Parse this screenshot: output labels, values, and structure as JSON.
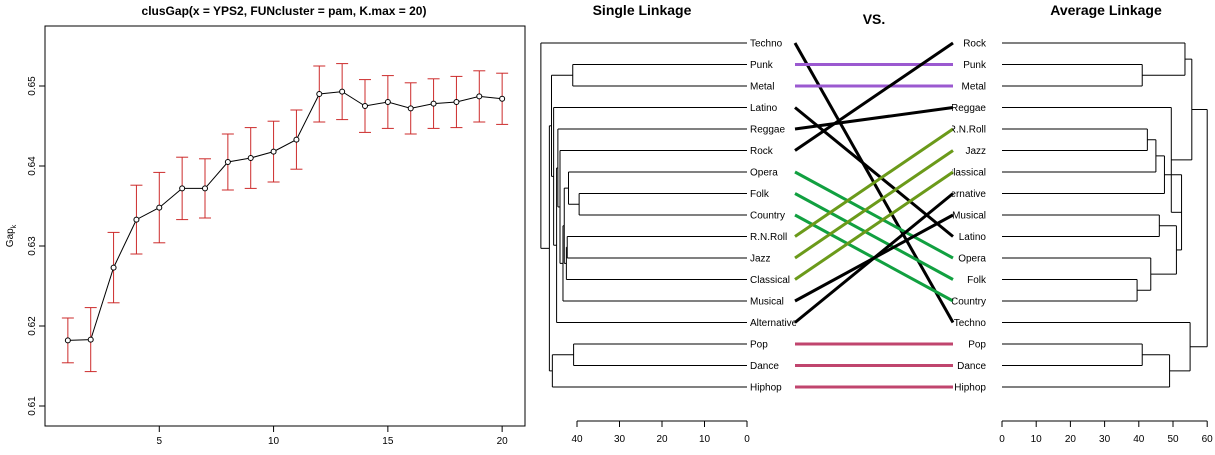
{
  "chart_data": [
    {
      "type": "line",
      "title": "clusGap(x = YPS2, FUNcluster = pam, K.max = 20)",
      "xlabel": "",
      "ylabel": "Gap",
      "ylabel_subscript": "k",
      "xlim": [
        0,
        21
      ],
      "ylim": [
        0.6075,
        0.6575
      ],
      "xticks": [
        "5",
        "10",
        "15",
        "20"
      ],
      "yticks": [
        "0.61",
        "0.62",
        "0.63",
        "0.64",
        "0.65"
      ],
      "errorbar_color": "#cc2b2b",
      "x": [
        1,
        2,
        3,
        4,
        5,
        6,
        7,
        8,
        9,
        10,
        11,
        12,
        13,
        14,
        15,
        16,
        17,
        18,
        19,
        20
      ],
      "values": [
        0.6182,
        0.6183,
        0.6273,
        0.6333,
        0.6348,
        0.6372,
        0.6372,
        0.6405,
        0.641,
        0.6418,
        0.6433,
        0.649,
        0.6493,
        0.6475,
        0.648,
        0.6472,
        0.6478,
        0.648,
        0.6487,
        0.6484
      ],
      "se": [
        0.0028,
        0.004,
        0.0044,
        0.0043,
        0.0044,
        0.0039,
        0.0037,
        0.0035,
        0.0038,
        0.0038,
        0.0037,
        0.0035,
        0.0035,
        0.0033,
        0.0033,
        0.0032,
        0.0031,
        0.0032,
        0.0032,
        0.0032
      ]
    },
    {
      "type": "tanglegram",
      "left_title": "Single Linkage",
      "center_title": "VS.",
      "right_title": "Average Linkage",
      "left_axis_ticks": [
        "40",
        "30",
        "20",
        "10",
        "0"
      ],
      "right_axis_ticks": [
        "0",
        "10",
        "20",
        "30",
        "40",
        "50",
        "60"
      ],
      "left_leaves": [
        "Techno",
        "Punk",
        "Metal",
        "Latino",
        "Reggae",
        "Rock",
        "Opera",
        "Folk",
        "Country",
        "R.N.Roll",
        "Jazz",
        "Classical",
        "Musical",
        "Alternative",
        "Pop",
        "Dance",
        "Hiphop"
      ],
      "right_leaves": [
        "Rock",
        "Punk",
        "Metal",
        "Reggae",
        "R.N.Roll",
        "Jazz",
        "Classical",
        "Alternative",
        "Musical",
        "Latino",
        "Opera",
        "Folk",
        "Country",
        "Techno",
        "Pop",
        "Dance",
        "Hiphop"
      ],
      "connectors": [
        {
          "from": "Techno",
          "to": "Techno",
          "color": "#000000"
        },
        {
          "from": "Punk",
          "to": "Punk",
          "color": "#9b59d0"
        },
        {
          "from": "Metal",
          "to": "Metal",
          "color": "#9b59d0"
        },
        {
          "from": "Latino",
          "to": "Latino",
          "color": "#000000"
        },
        {
          "from": "Reggae",
          "to": "Reggae",
          "color": "#000000"
        },
        {
          "from": "Rock",
          "to": "Rock",
          "color": "#000000"
        },
        {
          "from": "Opera",
          "to": "Opera",
          "color": "#11a040"
        },
        {
          "from": "Folk",
          "to": "Folk",
          "color": "#11a040"
        },
        {
          "from": "Country",
          "to": "Country",
          "color": "#11a040"
        },
        {
          "from": "R.N.Roll",
          "to": "R.N.Roll",
          "color": "#6b9a1a"
        },
        {
          "from": "Jazz",
          "to": "Jazz",
          "color": "#6b9a1a"
        },
        {
          "from": "Classical",
          "to": "Classical",
          "color": "#6b9a1a"
        },
        {
          "from": "Musical",
          "to": "Musical",
          "color": "#000000"
        },
        {
          "from": "Alternative",
          "to": "Alternative",
          "color": "#000000"
        },
        {
          "from": "Pop",
          "to": "Pop",
          "color": "#c0456e"
        },
        {
          "from": "Dance",
          "to": "Dance",
          "color": "#c0456e"
        },
        {
          "from": "Hiphop",
          "to": "Hiphop",
          "color": "#c0456e"
        }
      ],
      "left_merges": [
        {
          "a": "Opera",
          "b": "Folk",
          "h": 42
        },
        {
          "a": "Folk",
          "b": "Country",
          "h": 39
        },
        {
          "a": "R.N.Roll",
          "b": "Jazz",
          "h": 42
        },
        {
          "a": "Punk",
          "b": "Metal",
          "h": 41
        },
        {
          "a": "Pop",
          "b": "Dance",
          "h": 41
        }
      ],
      "right_merges": [
        {
          "a": "Punk",
          "b": "Metal",
          "h": 41
        },
        {
          "a": "Pop",
          "b": "Dance",
          "h": 41
        },
        {
          "a": "R.N.Roll",
          "b": "Jazz",
          "h": 43
        },
        {
          "a": "Folk",
          "b": "Country",
          "h": 39
        }
      ]
    }
  ]
}
